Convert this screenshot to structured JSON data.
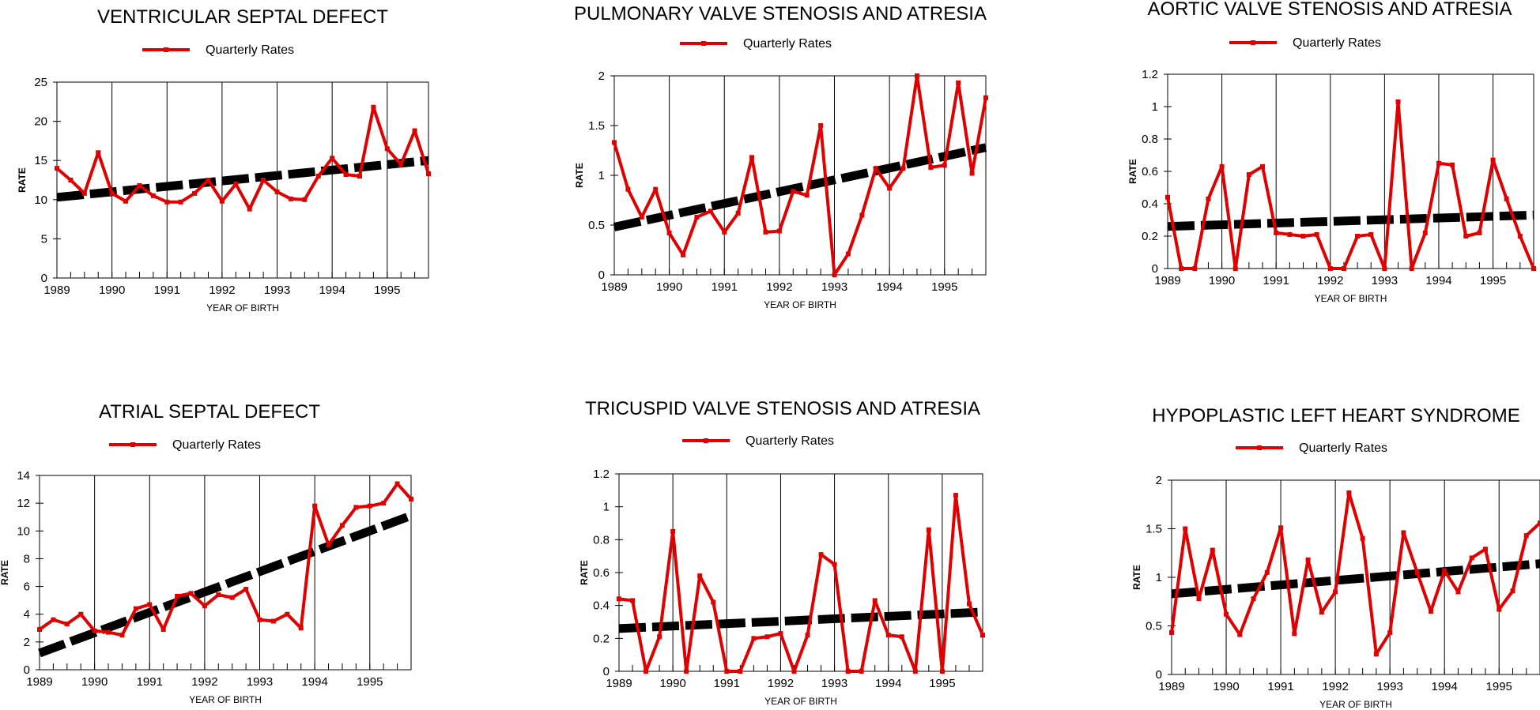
{
  "chart_data": [
    {
      "type": "line",
      "title": "VENTRICULAR SEPTAL DEFECT",
      "xlabel": "YEAR OF BIRTH",
      "ylabel": "RATE",
      "xlim": [
        1989,
        1995.75
      ],
      "ylim": [
        0,
        25
      ],
      "yticks": [
        0,
        5,
        10,
        15,
        20,
        25
      ],
      "xticks": [
        1989,
        1990,
        1991,
        1992,
        1993,
        1994,
        1995
      ],
      "legend": "top-center",
      "series": [
        {
          "name": "Quarterly Rates",
          "color": "#e00000",
          "x": [
            1989,
            1989.25,
            1989.5,
            1989.75,
            1990,
            1990.25,
            1990.5,
            1990.75,
            1991,
            1991.25,
            1991.5,
            1991.75,
            1992,
            1992.25,
            1992.5,
            1992.75,
            1993,
            1993.25,
            1993.5,
            1993.75,
            1994,
            1994.25,
            1994.5,
            1994.75,
            1995,
            1995.25,
            1995.5,
            1995.75
          ],
          "y": [
            14,
            12.5,
            10.8,
            16,
            10.8,
            9.8,
            11.8,
            10.5,
            9.7,
            9.7,
            10.8,
            12.5,
            9.8,
            12,
            8.8,
            12.5,
            11,
            10.1,
            10,
            13,
            15.3,
            13.2,
            13,
            21.8,
            16.5,
            14.5,
            18.8,
            13.3
          ]
        },
        {
          "name": "",
          "color": "#000000",
          "style": "dashed",
          "x": [
            1989,
            1995.75
          ],
          "y": [
            10.3,
            15
          ]
        }
      ]
    },
    {
      "type": "line",
      "title": "PULMONARY VALVE STENOSIS AND ATRESIA",
      "xlabel": "YEAR OF BIRTH",
      "ylabel": "RATE",
      "xlim": [
        1989,
        1995.75
      ],
      "ylim": [
        0,
        2
      ],
      "yticks": [
        0,
        0.5,
        1,
        1.5,
        2
      ],
      "xticks": [
        1989,
        1990,
        1991,
        1992,
        1993,
        1994,
        1995
      ],
      "legend": "top-center",
      "series": [
        {
          "name": "Quarterly Rates",
          "color": "#e00000",
          "x": [
            1989,
            1989.25,
            1989.5,
            1989.75,
            1990,
            1990.25,
            1990.5,
            1990.75,
            1991,
            1991.25,
            1991.5,
            1991.75,
            1992,
            1992.25,
            1992.5,
            1992.75,
            1993,
            1993.25,
            1993.5,
            1993.75,
            1994,
            1994.25,
            1994.5,
            1994.75,
            1995,
            1995.25,
            1995.5,
            1995.75
          ],
          "y": [
            1.33,
            0.86,
            0.58,
            0.86,
            0.42,
            0.2,
            0.58,
            0.64,
            0.43,
            0.62,
            1.18,
            0.43,
            0.44,
            0.84,
            0.8,
            1.5,
            0,
            0.21,
            0.6,
            1.07,
            0.87,
            1.07,
            2,
            1.08,
            1.1,
            1.93,
            1.02,
            1.78
          ]
        },
        {
          "name": "",
          "color": "#000000",
          "style": "dashed",
          "x": [
            1989,
            1995.75
          ],
          "y": [
            0.48,
            1.28
          ]
        }
      ]
    },
    {
      "type": "line",
      "title": "AORTIC VALVE STENOSIS AND ATRESIA",
      "xlabel": "YEAR OF BIRTH",
      "ylabel": "RATE",
      "xlim": [
        1989,
        1995.75
      ],
      "ylim": [
        0,
        1.2
      ],
      "yticks": [
        0,
        0.2,
        0.4,
        0.6,
        0.8,
        1,
        1.2
      ],
      "xticks": [
        1989,
        1990,
        1991,
        1992,
        1993,
        1994,
        1995
      ],
      "legend": "top-center",
      "series": [
        {
          "name": "Quarterly Rates",
          "color": "#e00000",
          "x": [
            1989,
            1989.25,
            1989.5,
            1989.75,
            1990,
            1990.25,
            1990.5,
            1990.75,
            1991,
            1991.25,
            1991.5,
            1991.75,
            1992,
            1992.25,
            1992.5,
            1992.75,
            1993,
            1993.25,
            1993.5,
            1993.75,
            1994,
            1994.25,
            1994.5,
            1994.75,
            1995,
            1995.25,
            1995.5,
            1995.75
          ],
          "y": [
            0.44,
            0,
            0,
            0.43,
            0.63,
            0,
            0.58,
            0.63,
            0.22,
            0.21,
            0.2,
            0.21,
            0,
            0,
            0.2,
            0.21,
            0,
            1.03,
            0,
            0.22,
            0.65,
            0.64,
            0.2,
            0.22,
            0.67,
            0.43,
            0.2,
            0
          ]
        },
        {
          "name": "",
          "color": "#000000",
          "style": "dashed",
          "x": [
            1989,
            1995.75
          ],
          "y": [
            0.26,
            0.33
          ]
        }
      ]
    },
    {
      "type": "line",
      "title": "ATRIAL SEPTAL DEFECT",
      "xlabel": "YEAR OF BIRTH",
      "ylabel": "RATE",
      "xlim": [
        1989,
        1995.75
      ],
      "ylim": [
        0,
        14
      ],
      "yticks": [
        0,
        2,
        4,
        6,
        8,
        10,
        12,
        14
      ],
      "xticks": [
        1989,
        1990,
        1991,
        1992,
        1993,
        1994,
        1995
      ],
      "legend": "top-center",
      "series": [
        {
          "name": "Quarterly Rates",
          "color": "#e00000",
          "x": [
            1989,
            1989.25,
            1989.5,
            1989.75,
            1990,
            1990.25,
            1990.5,
            1990.75,
            1991,
            1991.25,
            1991.5,
            1991.75,
            1992,
            1992.25,
            1992.5,
            1992.75,
            1993,
            1993.25,
            1993.5,
            1993.75,
            1994,
            1994.25,
            1994.5,
            1994.75,
            1995,
            1995.25,
            1995.5,
            1995.75
          ],
          "y": [
            2.9,
            3.6,
            3.3,
            4,
            2.8,
            2.7,
            2.5,
            4.4,
            4.7,
            2.9,
            5.3,
            5.5,
            4.6,
            5.4,
            5.2,
            5.8,
            3.6,
            3.5,
            4,
            3,
            11.8,
            9,
            10.4,
            11.7,
            11.8,
            12,
            13.4,
            12.3
          ]
        },
        {
          "name": "",
          "color": "#000000",
          "style": "dashed",
          "x": [
            1989,
            1995.75
          ],
          "y": [
            1.2,
            11.1
          ]
        }
      ]
    },
    {
      "type": "line",
      "title": "TRICUSPID VALVE STENOSIS AND ATRESIA",
      "xlabel": "YEAR OF BIRTH",
      "ylabel": "RATE",
      "xlim": [
        1989,
        1995.75
      ],
      "ylim": [
        0,
        1.2
      ],
      "yticks": [
        0,
        0.2,
        0.4,
        0.6,
        0.8,
        1,
        1.2
      ],
      "xticks": [
        1989,
        1990,
        1991,
        1992,
        1993,
        1994,
        1995
      ],
      "legend": "top-center",
      "series": [
        {
          "name": "Quarterly Rates",
          "color": "#e00000",
          "x": [
            1989,
            1989.25,
            1989.5,
            1989.75,
            1990,
            1990.25,
            1990.5,
            1990.75,
            1991,
            1991.25,
            1991.5,
            1991.75,
            1992,
            1992.25,
            1992.5,
            1992.75,
            1993,
            1993.25,
            1993.5,
            1993.75,
            1994,
            1994.25,
            1994.5,
            1994.75,
            1995,
            1995.25,
            1995.5,
            1995.75
          ],
          "y": [
            0.44,
            0.43,
            0,
            0.21,
            0.85,
            0,
            0.58,
            0.42,
            0,
            0,
            0.2,
            0.21,
            0.23,
            0,
            0.22,
            0.71,
            0.65,
            0,
            0,
            0.43,
            0.22,
            0.21,
            0,
            0.86,
            0,
            1.07,
            0.41,
            0.22
          ]
        },
        {
          "name": "",
          "color": "#000000",
          "style": "dashed",
          "x": [
            1989,
            1995.75
          ],
          "y": [
            0.26,
            0.36
          ]
        }
      ]
    },
    {
      "type": "line",
      "title": "HYPOPLASTIC LEFT HEART SYNDROME",
      "xlabel": "YEAR OF BIRTH",
      "ylabel": "RATE",
      "xlim": [
        1989,
        1995.75
      ],
      "ylim": [
        0,
        2
      ],
      "yticks": [
        0,
        0.5,
        1,
        1.5,
        2
      ],
      "xticks": [
        1989,
        1990,
        1991,
        1992,
        1993,
        1994,
        1995
      ],
      "legend": "top-center",
      "series": [
        {
          "name": "Quarterly Rates",
          "color": "#e00000",
          "x": [
            1989,
            1989.25,
            1989.5,
            1989.75,
            1990,
            1990.25,
            1990.5,
            1990.75,
            1991,
            1991.25,
            1991.5,
            1991.75,
            1992,
            1992.25,
            1992.5,
            1992.75,
            1993,
            1993.25,
            1993.5,
            1993.75,
            1994,
            1994.25,
            1994.5,
            1994.75,
            1995,
            1995.25,
            1995.5,
            1995.75
          ],
          "y": [
            0.43,
            1.5,
            0.78,
            1.28,
            0.62,
            0.41,
            0.78,
            1.05,
            1.51,
            0.42,
            1.18,
            0.64,
            0.85,
            1.87,
            1.4,
            0.21,
            0.43,
            1.46,
            1.05,
            0.65,
            1.07,
            0.85,
            1.2,
            1.29,
            0.67,
            0.86,
            1.43,
            1.56
          ]
        },
        {
          "name": "",
          "color": "#000000",
          "style": "dashed",
          "x": [
            1989,
            1995.75
          ],
          "y": [
            0.83,
            1.14
          ]
        }
      ]
    }
  ]
}
